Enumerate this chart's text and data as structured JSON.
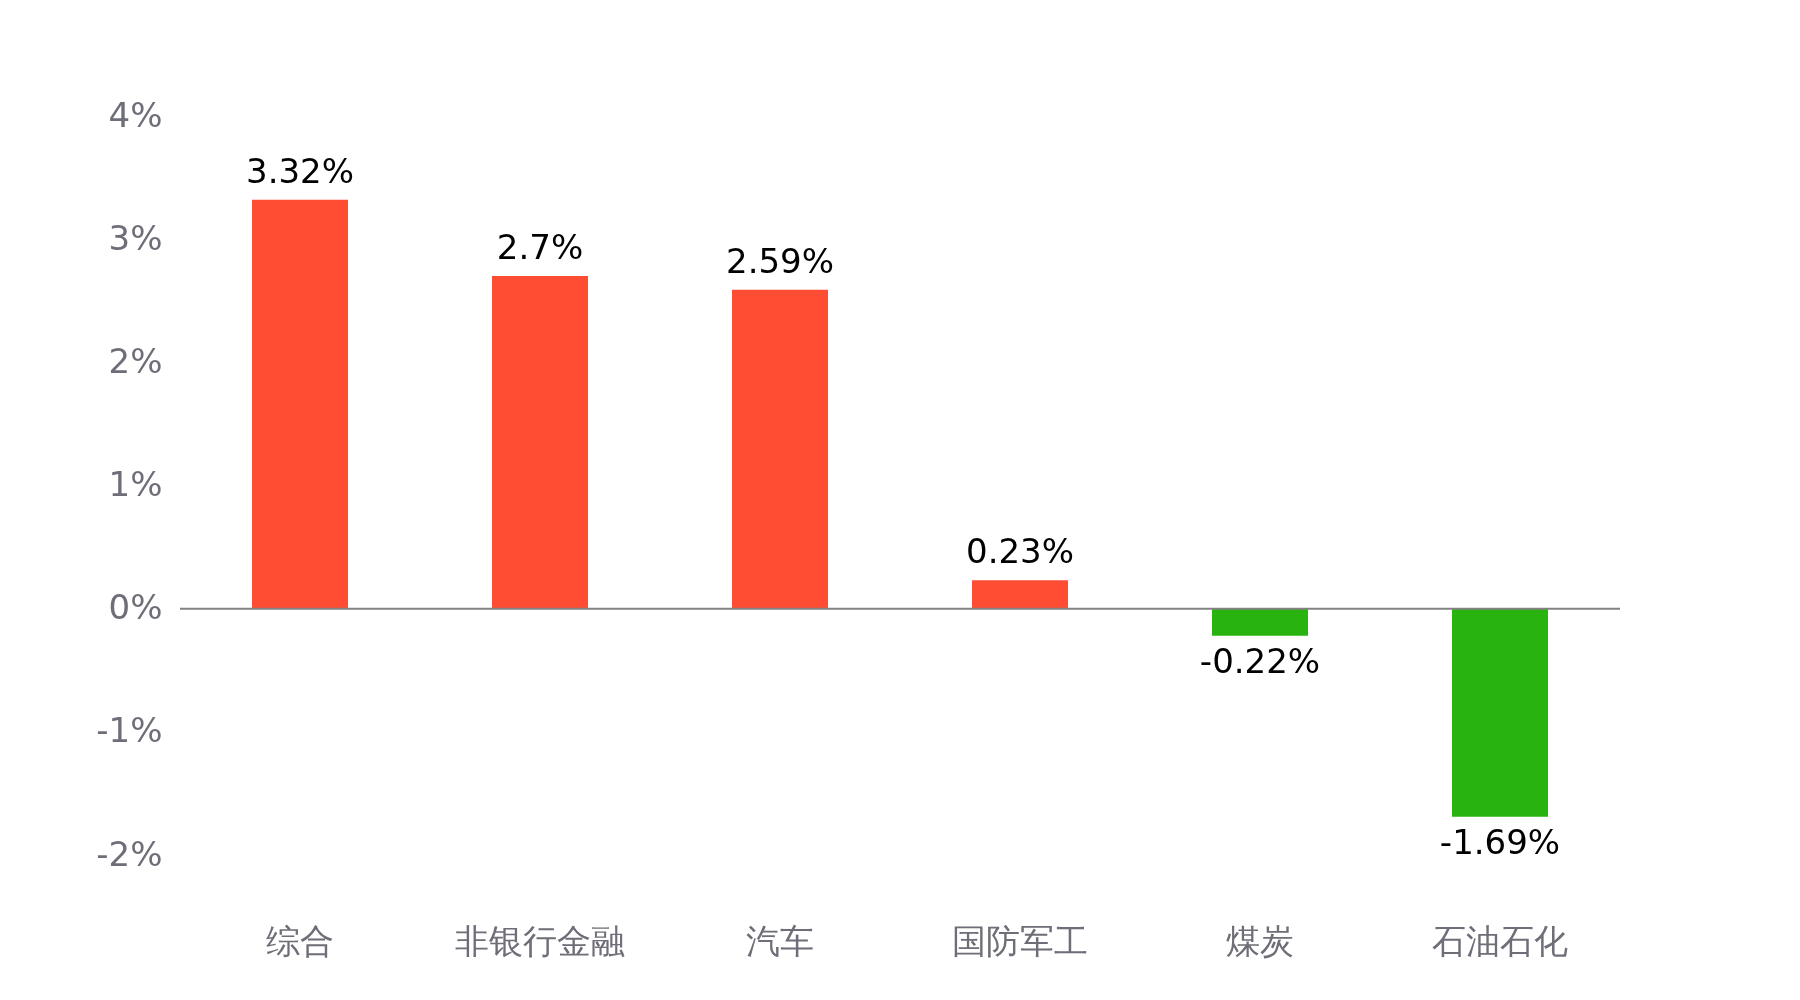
{
  "chart_data": {
    "type": "bar",
    "categories": [
      "综合",
      "非银行金融",
      "汽车",
      "国防军工",
      "煤炭",
      "石油石化"
    ],
    "values": [
      3.32,
      2.7,
      2.59,
      0.23,
      -0.22,
      -1.69
    ],
    "colors": [
      "#ff4d33",
      "#ff4d33",
      "#ff4d33",
      "#ff4d33",
      "#29b30f",
      "#29b30f"
    ],
    "value_labels": [
      "3.32%",
      "2.7%",
      "2.59%",
      "0.23%",
      "-0.22%",
      "-1.69%"
    ],
    "ylim": [
      -2,
      4
    ],
    "yticks": [
      {
        "value": -2,
        "label": "-2%"
      },
      {
        "value": -1,
        "label": "-1%"
      },
      {
        "value": 0,
        "label": "0%"
      },
      {
        "value": 1,
        "label": "1%"
      },
      {
        "value": 2,
        "label": "2%"
      },
      {
        "value": 3,
        "label": "3%"
      },
      {
        "value": 4,
        "label": "4%"
      }
    ],
    "ref_lines": [
      {
        "axis": "y",
        "value": 0,
        "color": "#828282"
      }
    ],
    "grid": false
  }
}
